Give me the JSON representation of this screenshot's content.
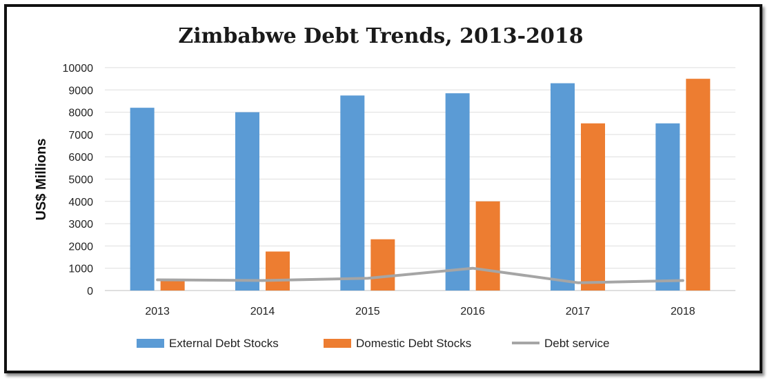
{
  "chart_data": {
    "type": "bar",
    "title": "Zimbabwe Debt Trends, 2013-2018",
    "xlabel": "",
    "ylabel": "US$ Millions",
    "ylim": [
      0,
      10000
    ],
    "yticks": [
      0,
      1000,
      2000,
      3000,
      4000,
      5000,
      6000,
      7000,
      8000,
      9000,
      10000
    ],
    "categories": [
      "2013",
      "2014",
      "2015",
      "2016",
      "2017",
      "2018"
    ],
    "grid": true,
    "legend_position": "bottom",
    "series": [
      {
        "name": "External Debt Stocks",
        "kind": "bar",
        "color": "#5B9BD5",
        "values": [
          8200,
          8000,
          8750,
          8850,
          9300,
          7500
        ]
      },
      {
        "name": "Domestic Debt Stocks",
        "kind": "bar",
        "color": "#ED7D31",
        "values": [
          500,
          1750,
          2300,
          4000,
          7500,
          9500
        ]
      },
      {
        "name": "Debt service",
        "kind": "line",
        "color": "#A5A5A5",
        "values": [
          480,
          450,
          550,
          1000,
          350,
          450
        ]
      }
    ]
  }
}
